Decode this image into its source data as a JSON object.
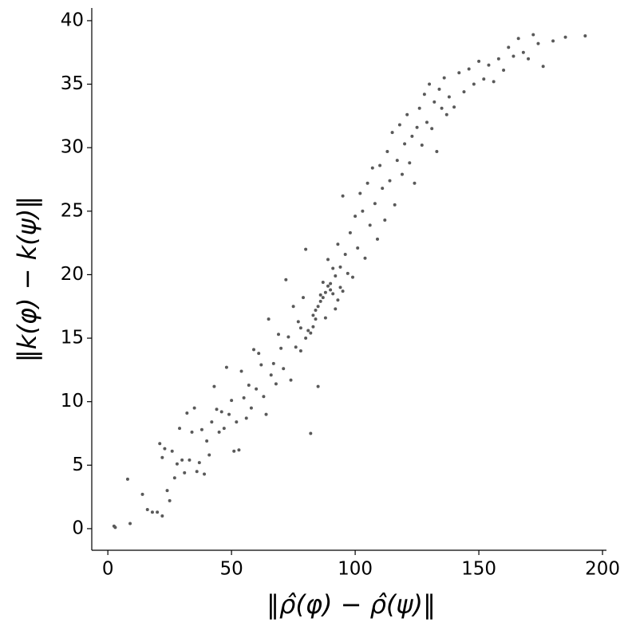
{
  "chart_data": {
    "type": "scatter",
    "xlabel": "‖ρ̂(φ) − ρ̂(ψ)‖",
    "ylabel": "‖k(φ) − k(ψ)‖",
    "color": "#595959",
    "xlim": [
      -6.5,
      201.6
    ],
    "ylim": [
      -1.7,
      41
    ],
    "xticks": [
      0,
      50,
      100,
      150,
      200
    ],
    "yticks": [
      0,
      5,
      10,
      15,
      20,
      25,
      30,
      35,
      40
    ],
    "x": [
      2.5,
      3,
      8,
      9,
      14,
      16,
      18,
      20,
      21,
      22,
      22,
      23,
      24,
      25,
      26,
      27,
      28,
      29,
      30,
      31,
      32,
      33,
      34,
      35,
      36,
      37,
      38,
      39,
      40,
      41,
      42,
      43,
      44,
      45,
      46,
      47,
      48,
      49,
      50,
      51,
      52,
      53,
      54,
      55,
      56,
      57,
      58,
      59,
      60,
      61,
      62,
      63,
      64,
      65,
      66,
      67,
      68,
      69,
      70,
      71,
      72,
      73,
      74,
      75,
      76,
      77,
      78,
      79,
      80,
      81,
      82,
      83,
      84,
      85,
      86,
      87,
      88,
      89,
      90,
      91,
      92,
      93,
      94,
      95,
      96,
      97,
      98,
      99,
      100,
      101,
      102,
      103,
      104,
      105,
      106,
      107,
      108,
      109,
      110,
      111,
      112,
      113,
      114,
      115,
      116,
      117,
      118,
      119,
      120,
      121,
      122,
      123,
      124,
      125,
      126,
      127,
      128,
      129,
      130,
      131,
      132,
      133,
      134,
      135,
      136,
      137,
      138,
      140,
      142,
      144,
      146,
      148,
      150,
      152,
      154,
      156,
      158,
      160,
      162,
      164,
      166,
      168,
      170,
      172,
      174,
      176,
      180,
      185,
      193,
      85,
      86,
      87,
      88,
      89,
      90,
      84,
      83,
      82,
      80,
      78,
      91,
      92,
      93,
      94,
      95
    ],
    "y": [
      0.2,
      0.1,
      3.9,
      0.4,
      2.7,
      1.5,
      1.3,
      1.3,
      6.7,
      1,
      5.6,
      6.3,
      3,
      2.2,
      6.1,
      4,
      5.1,
      7.9,
      5.4,
      4.4,
      9.1,
      5.4,
      7.6,
      9.5,
      4.5,
      5.2,
      7.8,
      4.3,
      6.9,
      5.8,
      8.4,
      11.2,
      9.4,
      7.6,
      9.2,
      7.9,
      12.7,
      9.0,
      10.1,
      6.1,
      8.4,
      6.2,
      12.4,
      10.3,
      8.7,
      11.3,
      9.5,
      14.1,
      11.0,
      13.8,
      12.9,
      10.4,
      9.0,
      16.5,
      12.1,
      13.0,
      11.4,
      15.3,
      14.2,
      12.6,
      19.6,
      15.1,
      11.7,
      17.5,
      14.3,
      16.3,
      14.0,
      18.2,
      22.0,
      15.6,
      7.5,
      16.8,
      17.2,
      11.2,
      18.4,
      19.4,
      16.6,
      21.2,
      18.8,
      20.5,
      17.3,
      22.4,
      19.0,
      26.2,
      21.6,
      20.1,
      23.3,
      19.8,
      24.6,
      22.1,
      26.4,
      25.0,
      21.3,
      27.2,
      23.9,
      28.4,
      25.6,
      22.8,
      28.6,
      26.8,
      24.3,
      29.7,
      27.4,
      31.2,
      25.5,
      29.0,
      31.8,
      27.9,
      30.3,
      32.6,
      28.8,
      30.9,
      27.2,
      31.6,
      33.1,
      30.2,
      34.2,
      32.0,
      35.0,
      31.5,
      33.6,
      29.7,
      34.6,
      33.1,
      35.5,
      32.6,
      34.0,
      33.2,
      35.9,
      34.4,
      36.2,
      35.0,
      36.8,
      35.4,
      36.5,
      35.2,
      37.0,
      36.1,
      37.9,
      37.2,
      38.6,
      37.5,
      37.0,
      38.9,
      38.2,
      36.4,
      38.4,
      38.7,
      38.8,
      17.5,
      17.9,
      18.2,
      18.6,
      19.1,
      19.3,
      16.5,
      15.9,
      15.4,
      15.0,
      15.8,
      18.5,
      19.9,
      18.0,
      20.6,
      18.7
    ]
  }
}
